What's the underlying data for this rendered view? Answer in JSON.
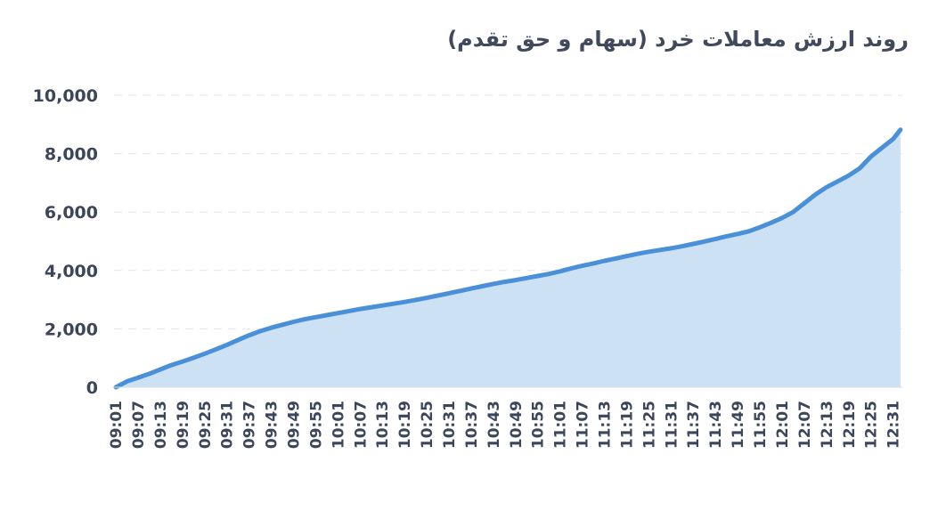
{
  "chart_data": {
    "type": "area",
    "title": "روند ارزش معاملات خرد (سهام و حق تقدم)",
    "xlabel": "",
    "ylabel": "",
    "ylim": [
      0,
      10000
    ],
    "yticks": [
      0,
      2000,
      4000,
      6000,
      8000,
      10000
    ],
    "ytick_labels": [
      "0",
      "2,000",
      "4,000",
      "6,000",
      "8,000",
      "10,000"
    ],
    "grid": true,
    "legend": "none",
    "line_color": "#4a90d9",
    "fill_color": "#cde1f5",
    "x_tick_labels": [
      "09:01",
      "09:07",
      "09:13",
      "09:19",
      "09:25",
      "09:31",
      "09:37",
      "09:43",
      "09:49",
      "09:55",
      "10:01",
      "10:07",
      "10:13",
      "10:19",
      "10:25",
      "10:31",
      "10:37",
      "10:43",
      "10:49",
      "10:55",
      "11:01",
      "11:07",
      "11:13",
      "11:19",
      "11:25",
      "11:31",
      "11:37",
      "11:43",
      "11:49",
      "11:55",
      "12:01",
      "12:07",
      "12:13",
      "12:19",
      "12:25",
      "12:31"
    ],
    "x": [
      "09:01",
      "09:04",
      "09:07",
      "09:10",
      "09:13",
      "09:16",
      "09:19",
      "09:22",
      "09:25",
      "09:28",
      "09:31",
      "09:34",
      "09:37",
      "09:40",
      "09:43",
      "09:46",
      "09:49",
      "09:52",
      "09:55",
      "09:58",
      "10:01",
      "10:04",
      "10:07",
      "10:10",
      "10:13",
      "10:16",
      "10:19",
      "10:22",
      "10:25",
      "10:28",
      "10:31",
      "10:34",
      "10:37",
      "10:40",
      "10:43",
      "10:46",
      "10:49",
      "10:52",
      "10:55",
      "10:58",
      "11:01",
      "11:04",
      "11:07",
      "11:10",
      "11:13",
      "11:16",
      "11:19",
      "11:22",
      "11:25",
      "11:28",
      "11:31",
      "11:34",
      "11:37",
      "11:40",
      "11:43",
      "11:46",
      "11:49",
      "11:52",
      "11:55",
      "11:58",
      "12:01",
      "12:04",
      "12:07",
      "12:10",
      "12:13",
      "12:16",
      "12:19",
      "12:22",
      "12:25",
      "12:28",
      "12:31",
      "12:33"
    ],
    "series": [
      {
        "values": [
          0,
          200,
          330,
          460,
          610,
          760,
          880,
          1010,
          1150,
          1300,
          1450,
          1620,
          1780,
          1920,
          2040,
          2140,
          2240,
          2330,
          2400,
          2470,
          2540,
          2610,
          2680,
          2740,
          2800,
          2860,
          2920,
          2990,
          3060,
          3140,
          3220,
          3300,
          3380,
          3460,
          3540,
          3610,
          3670,
          3740,
          3810,
          3880,
          3970,
          4070,
          4160,
          4240,
          4330,
          4410,
          4490,
          4570,
          4640,
          4700,
          4760,
          4830,
          4910,
          4990,
          5080,
          5170,
          5250,
          5340,
          5480,
          5630,
          5800,
          6000,
          6300,
          6600,
          6850,
          7050,
          7250,
          7500,
          7900,
          8200,
          8500,
          8820
        ]
      }
    ]
  }
}
